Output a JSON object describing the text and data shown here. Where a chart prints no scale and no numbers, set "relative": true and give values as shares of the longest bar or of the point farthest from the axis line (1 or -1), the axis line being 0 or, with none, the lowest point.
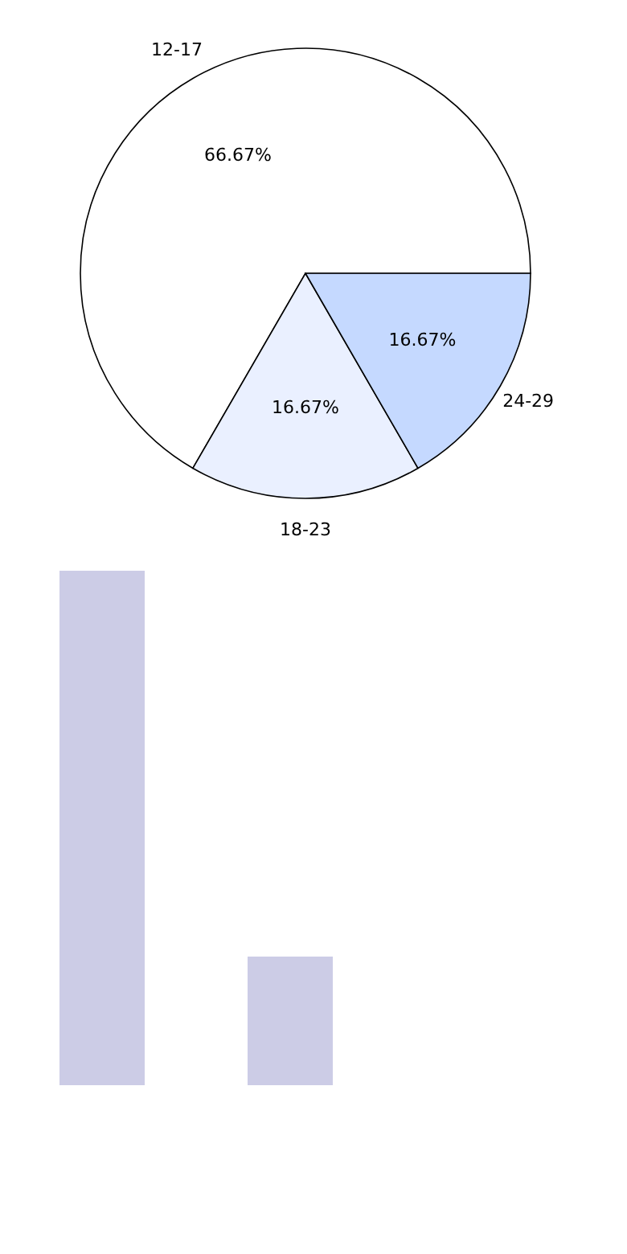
{
  "chart_data": [
    {
      "type": "pie",
      "categories": [
        "12-17",
        "18-23",
        "24-29"
      ],
      "values": [
        66.67,
        16.67,
        16.67
      ],
      "colors": [
        "#ffffff",
        "#eaf0ff",
        "#c5d9ff"
      ],
      "data_labels": true,
      "value_labels": [
        "66.67%",
        "16.67%",
        "16.67%"
      ],
      "legend": false
    },
    {
      "type": "bar",
      "categories": [
        null,
        null
      ],
      "relative": true,
      "series": [
        {
          "color": "#ccccE6",
          "values": [
            1,
            0.25
          ]
        }
      ]
    }
  ]
}
